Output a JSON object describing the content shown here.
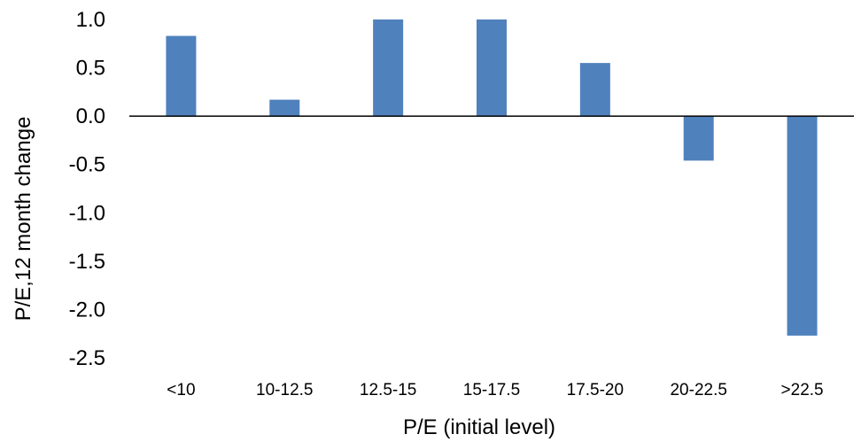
{
  "chart_data": {
    "type": "bar",
    "categories": [
      "<10",
      "10-12.5",
      "12.5-15",
      "15-17.5",
      "17.5-20",
      "20-22.5",
      ">22.5"
    ],
    "values": [
      0.83,
      0.17,
      1.0,
      1.0,
      0.55,
      -0.46,
      -2.27
    ],
    "xlabel": "P/E (initial level)",
    "ylabel": "P/E,12 month change",
    "ylim": [
      -2.5,
      1.0
    ],
    "yticks": [
      1.0,
      0.5,
      0.0,
      -0.5,
      -1.0,
      -1.5,
      -2.0,
      -2.5
    ],
    "ytick_labels": [
      "1.0",
      "0.5",
      "0.0",
      "-0.5",
      "-1.0",
      "-1.5",
      "-2.0",
      "-2.5"
    ],
    "grid": false,
    "legend": "none",
    "bar_color": "#4f81bd",
    "axis_color": "#000000"
  }
}
